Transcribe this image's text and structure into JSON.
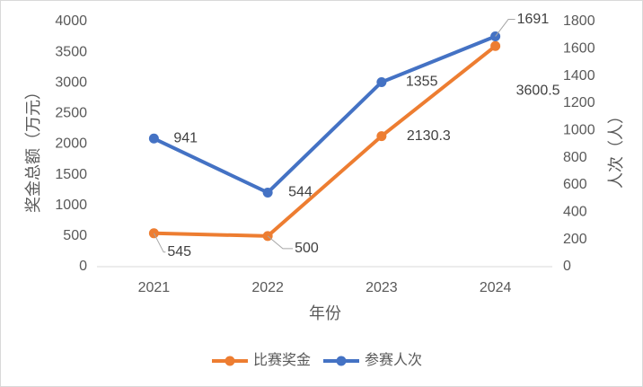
{
  "chart_data": {
    "type": "line",
    "categories": [
      "2021",
      "2022",
      "2023",
      "2024"
    ],
    "x_label": "年份",
    "y_label": "奖金总额（万元）",
    "y2_label": "人次（人）",
    "ylim": [
      0,
      4000
    ],
    "yticks": [
      0,
      500,
      1000,
      1500,
      2000,
      2500,
      3000,
      3500,
      4000
    ],
    "y2lim": [
      0,
      1800
    ],
    "y2ticks": [
      0,
      200,
      400,
      600,
      800,
      1000,
      1200,
      1400,
      1600,
      1800
    ],
    "grid": false,
    "legend": "bottom",
    "series": [
      {
        "name": "比赛奖金",
        "color": "#ed7d31",
        "values": [
          545,
          500,
          2130.3,
          3600.5
        ]
      },
      {
        "name": "参赛人次",
        "color": "#4472c4",
        "axis": "y2",
        "values": [
          941,
          544,
          1355,
          1691
        ]
      }
    ]
  }
}
